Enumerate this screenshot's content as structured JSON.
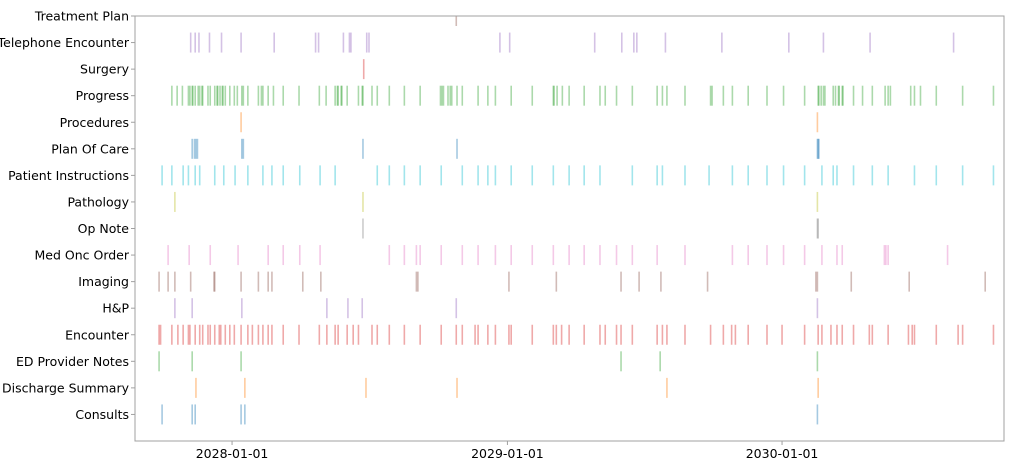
{
  "chart_data": {
    "type": "eventplot",
    "title": "",
    "xlabel": "",
    "ylabel": "",
    "xlim": [
      "2027-08-25",
      "2030-10-23"
    ],
    "grid": false,
    "x_ticks": [
      "2028-01-01",
      "2029-01-01",
      "2030-01-01"
    ],
    "series": [
      {
        "name": "Consults",
        "color": "#1f77b4",
        "dates": [
          "2027-09-30",
          "2027-11-09",
          "2027-11-13",
          "2028-01-13",
          "2028-01-18",
          "2030-02-17"
        ]
      },
      {
        "name": "Discharge Summary",
        "color": "#ff7f0e",
        "dates": [
          "2027-11-14",
          "2028-01-18",
          "2028-06-27",
          "2028-10-26",
          "2029-08-01",
          "2030-02-18"
        ]
      },
      {
        "name": "ED Provider Notes",
        "color": "#2ca02c",
        "dates": [
          "2027-09-26",
          "2027-11-09",
          "2028-01-13",
          "2029-06-01",
          "2029-07-23",
          "2030-02-17"
        ]
      },
      {
        "name": "Encounter",
        "color": "#d62728",
        "dates": [
          "2027-09-26",
          "2027-09-28",
          "2027-10-13",
          "2027-10-21",
          "2027-10-28",
          "2027-11-04",
          "2027-11-06",
          "2027-11-13",
          "2027-11-19",
          "2027-11-23",
          "2027-11-30",
          "2027-12-03",
          "2027-12-09",
          "2027-12-15",
          "2027-12-17",
          "2027-12-23",
          "2027-12-29",
          "2028-01-04",
          "2028-01-13",
          "2028-01-22",
          "2028-01-28",
          "2028-02-05",
          "2028-02-11",
          "2028-02-18",
          "2028-02-23",
          "2028-03-09",
          "2028-03-30",
          "2028-04-26",
          "2028-05-06",
          "2028-05-17",
          "2028-05-21",
          "2028-06-02",
          "2028-06-10",
          "2028-06-17",
          "2028-07-05",
          "2028-07-12",
          "2028-07-28",
          "2028-08-17",
          "2028-09-07",
          "2028-10-05",
          "2028-10-25",
          "2028-11-02",
          "2028-11-19",
          "2028-11-23",
          "2028-12-06",
          "2028-12-16",
          "2029-01-03",
          "2029-01-06",
          "2029-02-03",
          "2029-03-03",
          "2029-03-07",
          "2029-03-14",
          "2029-03-24",
          "2029-04-13",
          "2029-05-04",
          "2029-05-11",
          "2029-05-26",
          "2029-06-01",
          "2029-06-16",
          "2029-07-19",
          "2029-07-26",
          "2029-08-01",
          "2029-08-25",
          "2029-09-28",
          "2029-10-15",
          "2029-10-26",
          "2029-10-31",
          "2029-11-17",
          "2029-12-12",
          "2030-01-01",
          "2030-01-31",
          "2030-02-18",
          "2030-02-23",
          "2030-03-07",
          "2030-03-15",
          "2030-03-22",
          "2030-04-06",
          "2030-04-27",
          "2030-05-01",
          "2030-05-22",
          "2030-06-18",
          "2030-06-23",
          "2030-06-26",
          "2030-07-25",
          "2030-08-23",
          "2030-08-29",
          "2030-10-09"
        ]
      },
      {
        "name": "H&P",
        "color": "#9467bd",
        "dates": [
          "2027-10-17",
          "2027-11-09",
          "2028-01-14",
          "2028-05-06",
          "2028-06-03",
          "2028-06-22",
          "2028-10-25",
          "2030-02-17"
        ]
      },
      {
        "name": "Imaging",
        "color": "#8c564b",
        "dates": [
          "2027-09-26",
          "2027-10-08",
          "2027-10-17",
          "2027-11-07",
          "2027-12-08",
          "2027-12-09",
          "2028-01-13",
          "2028-02-05",
          "2028-02-18",
          "2028-02-23",
          "2028-04-04",
          "2028-04-28",
          "2028-09-02",
          "2028-09-04",
          "2029-01-03",
          "2029-03-07",
          "2029-06-01",
          "2029-06-25",
          "2029-07-24",
          "2029-09-24",
          "2030-02-15",
          "2030-02-17",
          "2030-04-03",
          "2030-06-19",
          "2030-09-28"
        ]
      },
      {
        "name": "Med Onc Order",
        "color": "#e377c2",
        "dates": [
          "2027-10-08",
          "2027-11-05",
          "2027-12-03",
          "2028-01-09",
          "2028-02-18",
          "2028-03-09",
          "2028-03-31",
          "2028-04-27",
          "2028-07-28",
          "2028-08-17",
          "2028-09-02",
          "2028-09-07",
          "2028-10-05",
          "2028-11-02",
          "2028-11-23",
          "2028-12-16",
          "2029-01-06",
          "2029-02-03",
          "2029-03-03",
          "2029-03-24",
          "2029-04-13",
          "2029-05-04",
          "2029-05-26",
          "2029-06-16",
          "2029-07-19",
          "2029-08-25",
          "2029-10-27",
          "2029-11-17",
          "2029-12-12",
          "2030-01-03",
          "2030-01-31",
          "2030-02-23",
          "2030-03-15",
          "2030-03-22",
          "2030-05-17",
          "2030-05-19",
          "2030-05-22",
          "2030-08-09"
        ]
      },
      {
        "name": "Op Note",
        "color": "#7f7f7f",
        "dates": [
          "2028-06-23",
          "2030-02-17",
          "2030-02-18"
        ]
      },
      {
        "name": "Pathology",
        "color": "#bcbd22",
        "dates": [
          "2027-10-17",
          "2028-06-23",
          "2030-02-17"
        ]
      },
      {
        "name": "Patient Instructions",
        "color": "#17becf",
        "dates": [
          "2027-09-30",
          "2027-10-13",
          "2027-10-28",
          "2027-11-04",
          "2027-11-13",
          "2027-11-19",
          "2027-12-09",
          "2027-12-21",
          "2028-01-05",
          "2028-01-22",
          "2028-02-11",
          "2028-02-23",
          "2028-03-09",
          "2028-03-31",
          "2028-04-27",
          "2028-05-17",
          "2028-07-12",
          "2028-07-28",
          "2028-08-17",
          "2028-09-07",
          "2028-10-05",
          "2028-11-02",
          "2028-11-23",
          "2028-12-06",
          "2028-12-16",
          "2029-01-06",
          "2029-02-03",
          "2029-03-03",
          "2029-03-24",
          "2029-04-13",
          "2029-05-04",
          "2029-06-16",
          "2029-07-19",
          "2029-07-26",
          "2029-08-25",
          "2029-09-26",
          "2029-10-27",
          "2029-11-17",
          "2029-12-12",
          "2030-01-03",
          "2030-01-31",
          "2030-02-23",
          "2030-03-10",
          "2030-03-15",
          "2030-04-06",
          "2030-05-01",
          "2030-05-22",
          "2030-06-26",
          "2030-07-25",
          "2030-08-29",
          "2030-10-09"
        ]
      },
      {
        "name": "Plan Of Care",
        "color": "#1f77b4",
        "dates": [
          "2027-11-09",
          "2027-11-12",
          "2027-11-14",
          "2027-11-16",
          "2028-01-14",
          "2028-01-16",
          "2028-06-23",
          "2028-10-26",
          "2030-02-17",
          "2030-02-18",
          "2030-02-19"
        ]
      },
      {
        "name": "Procedures",
        "color": "#ff7f0e",
        "dates": [
          "2028-01-13",
          "2030-02-17"
        ]
      },
      {
        "name": "Progress",
        "color": "#2ca02c",
        "dates": [
          "2027-10-13",
          "2027-10-20",
          "2027-10-27",
          "2027-11-04",
          "2027-11-06",
          "2027-11-09",
          "2027-11-10",
          "2027-11-13",
          "2027-11-17",
          "2027-11-19",
          "2027-11-22",
          "2027-11-23",
          "2027-11-30",
          "2027-12-03",
          "2027-12-09",
          "2027-12-12",
          "2027-12-13",
          "2027-12-16",
          "2027-12-19",
          "2027-12-20",
          "2027-12-23",
          "2027-12-29",
          "2028-01-04",
          "2028-01-08",
          "2028-01-14",
          "2028-01-16",
          "2028-01-22",
          "2028-02-05",
          "2028-02-09",
          "2028-02-11",
          "2028-02-18",
          "2028-02-25",
          "2028-03-09",
          "2028-03-30",
          "2028-04-26",
          "2028-05-05",
          "2028-05-17",
          "2028-05-20",
          "2028-05-21",
          "2028-05-25",
          "2028-05-26",
          "2028-06-02",
          "2028-06-17",
          "2028-06-22",
          "2028-06-23",
          "2028-07-05",
          "2028-07-12",
          "2028-07-28",
          "2028-08-17",
          "2028-09-07",
          "2028-10-04",
          "2028-10-06",
          "2028-10-08",
          "2028-10-14",
          "2028-10-17",
          "2028-10-19",
          "2028-10-26",
          "2028-11-02",
          "2028-11-23",
          "2028-12-06",
          "2028-12-16",
          "2029-01-06",
          "2029-02-03",
          "2029-03-03",
          "2029-03-04",
          "2029-03-08",
          "2029-03-15",
          "2029-03-24",
          "2029-04-13",
          "2029-05-04",
          "2029-05-11",
          "2029-05-26",
          "2029-06-16",
          "2029-07-19",
          "2029-07-26",
          "2029-08-01",
          "2029-08-25",
          "2029-09-28",
          "2029-09-30",
          "2029-10-15",
          "2029-10-27",
          "2029-11-17",
          "2029-12-12",
          "2030-01-03",
          "2030-01-31",
          "2030-02-18",
          "2030-02-19",
          "2030-02-22",
          "2030-02-25",
          "2030-02-27",
          "2030-03-10",
          "2030-03-13",
          "2030-03-17",
          "2030-03-18",
          "2030-03-22",
          "2030-03-23",
          "2030-04-06",
          "2030-04-18",
          "2030-05-01",
          "2030-05-18",
          "2030-05-22",
          "2030-05-25",
          "2030-06-21",
          "2030-06-26",
          "2030-07-04",
          "2030-07-25",
          "2030-08-29",
          "2030-10-09"
        ]
      },
      {
        "name": "Surgery",
        "color": "#d62728",
        "dates": [
          "2028-06-24"
        ]
      },
      {
        "name": "Telephone Encounter",
        "color": "#9467bd",
        "dates": [
          "2027-11-07",
          "2027-11-13",
          "2027-11-18",
          "2027-12-02",
          "2027-12-18",
          "2028-01-13",
          "2028-02-26",
          "2028-04-21",
          "2028-04-25",
          "2028-05-28",
          "2028-06-05",
          "2028-06-07",
          "2028-06-28",
          "2028-07-01",
          "2028-12-22",
          "2029-01-04",
          "2029-04-27",
          "2029-06-02",
          "2029-06-18",
          "2029-06-22",
          "2029-07-30",
          "2029-10-13",
          "2030-01-10",
          "2030-02-25",
          "2030-04-28",
          "2030-08-17"
        ]
      },
      {
        "name": "Treatment Plan",
        "color": "#8c564b",
        "dates": [
          "2028-10-25"
        ]
      }
    ]
  }
}
